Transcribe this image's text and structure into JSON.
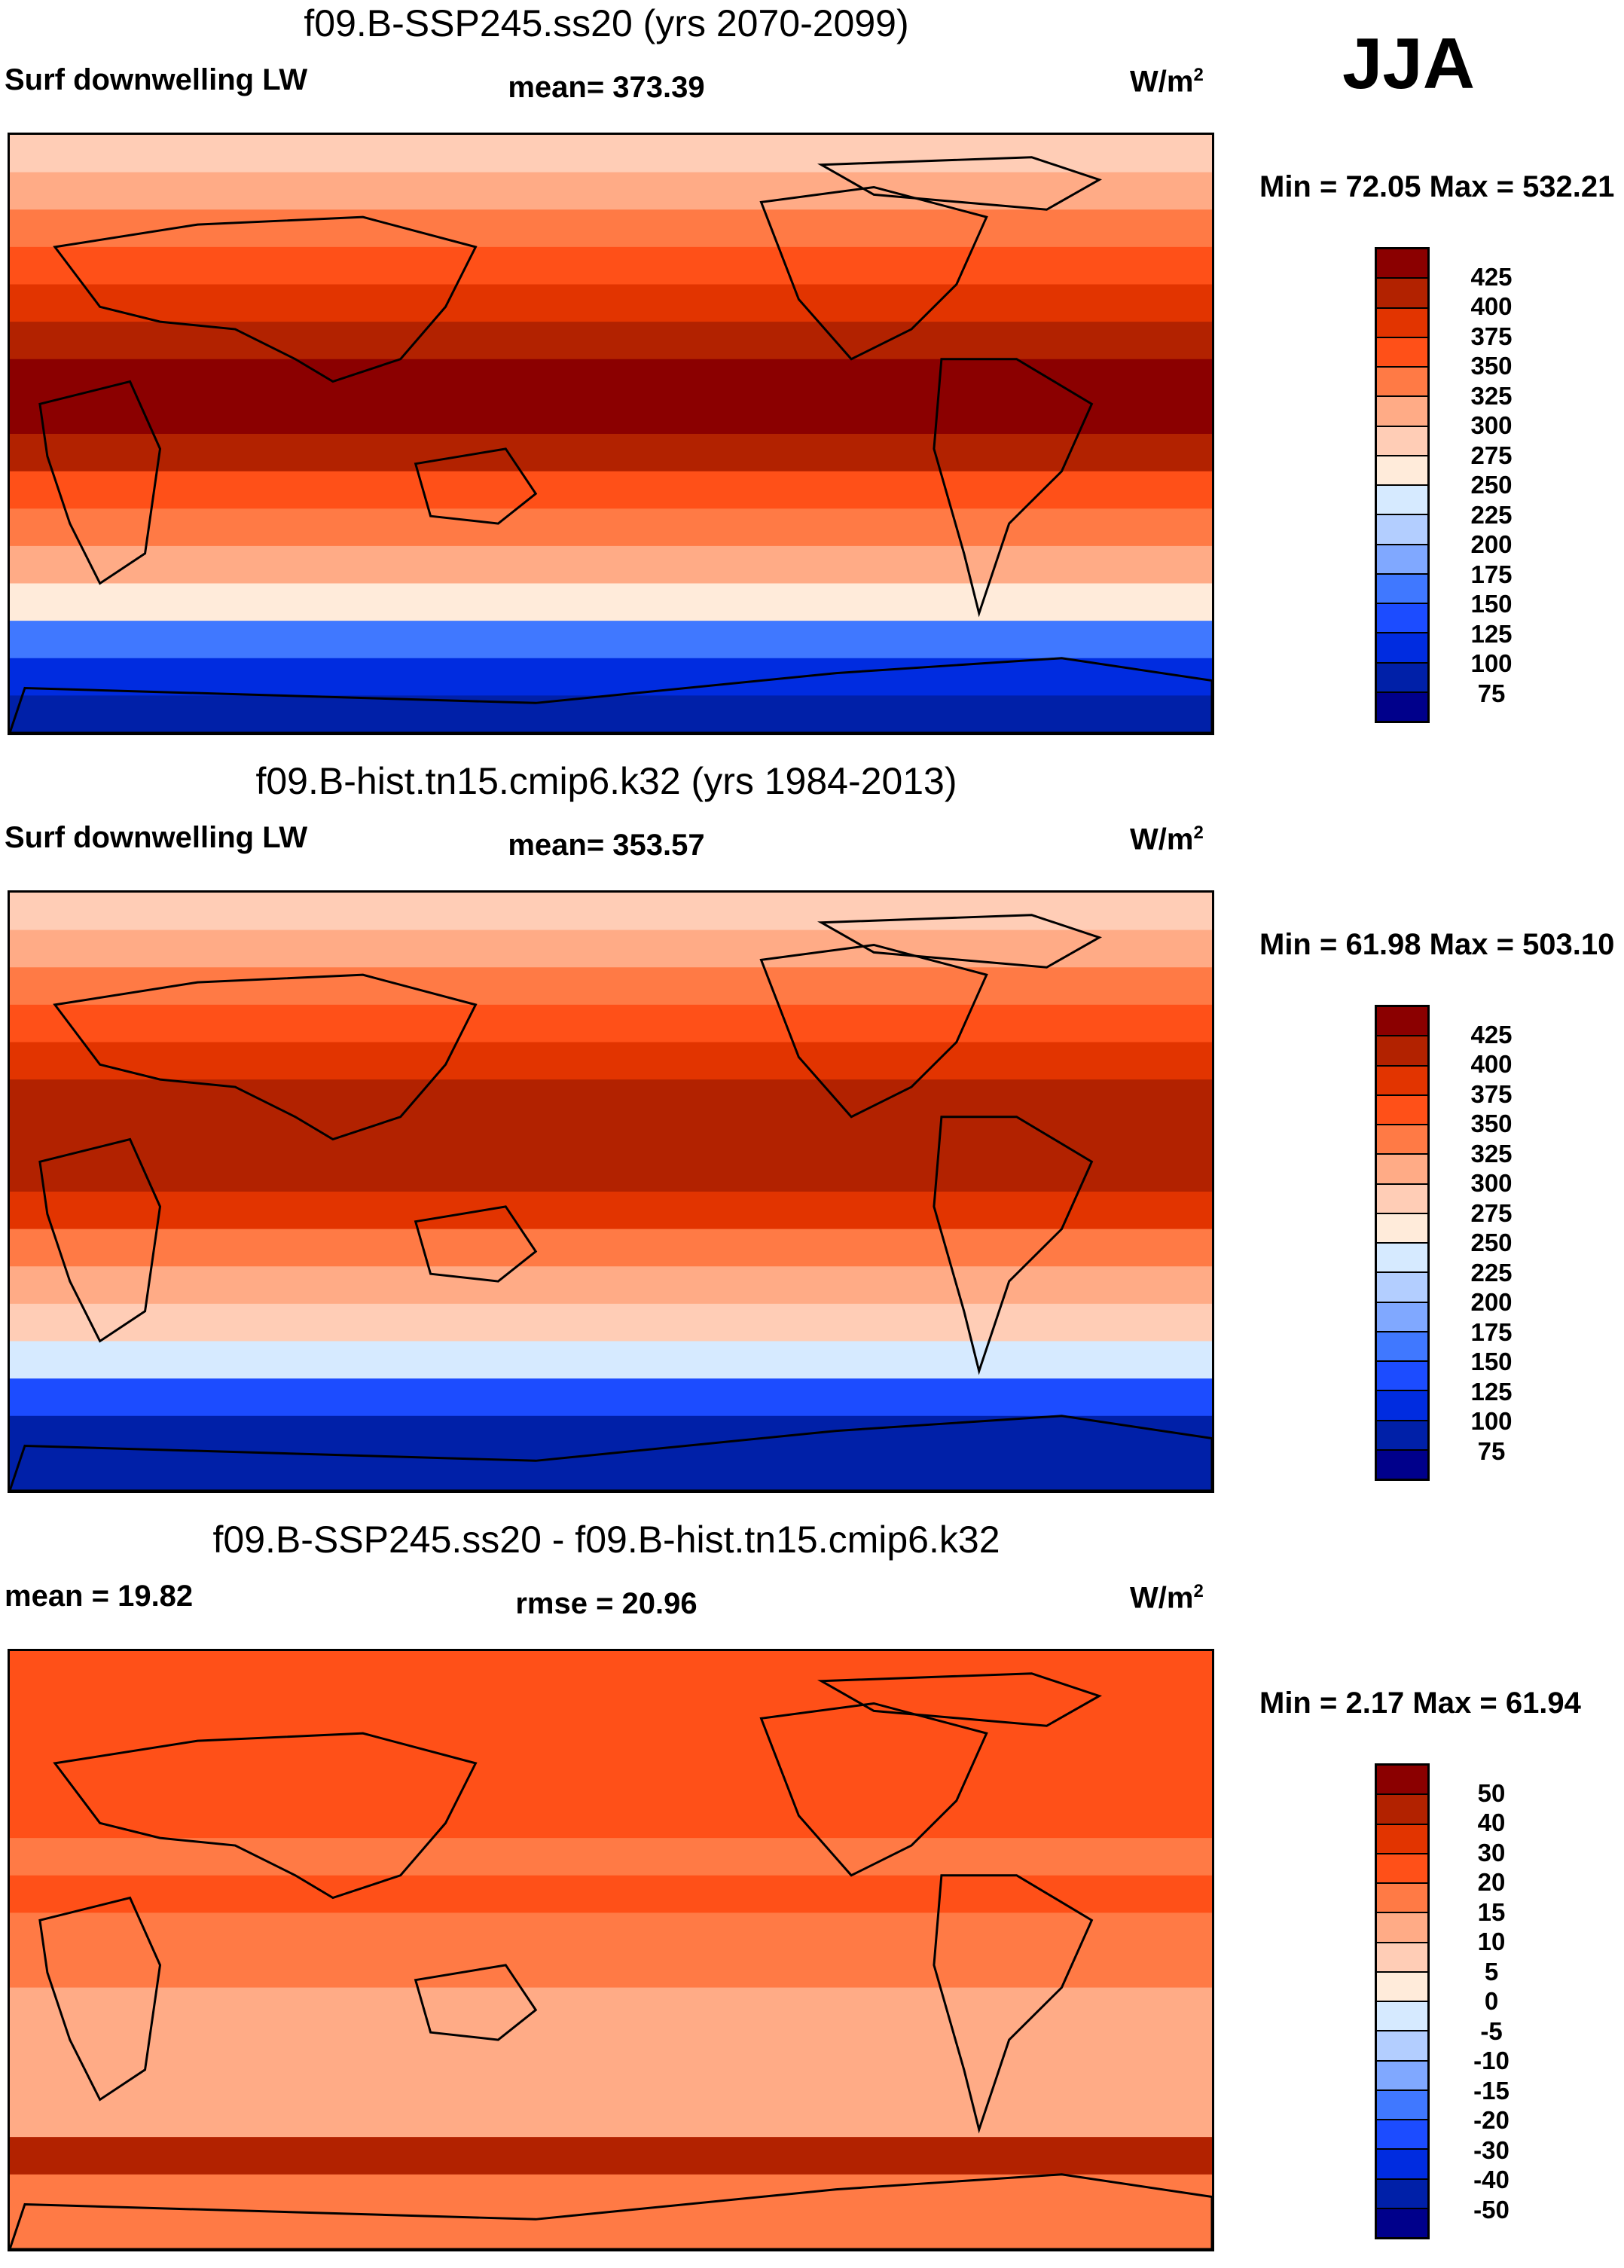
{
  "season": "JJA",
  "chart_data": [
    {
      "type": "heatmap",
      "title": "f09.B-SSP245.ss20 (yrs 2070-2099)",
      "left_label": "Surf downwelling LW",
      "center_label": "mean= 373.39",
      "units": "W/m",
      "units_sup": "2",
      "min_max": "Min =  72.05 Max = 532.21",
      "levels": [
        "425",
        "400",
        "375",
        "350",
        "325",
        "300",
        "275",
        "250",
        "225",
        "200",
        "175",
        "150",
        "125",
        "100",
        "75"
      ],
      "zonal_values_north_to_south": [
        290,
        320,
        345,
        370,
        395,
        420,
        430,
        425,
        400,
        370,
        340,
        300,
        260,
        160,
        110,
        95
      ]
    },
    {
      "type": "heatmap",
      "title": "f09.B-hist.tn15.cmip6.k32 (yrs 1984-2013)",
      "left_label": "Surf downwelling LW",
      "center_label": "mean= 353.57",
      "units": "W/m",
      "units_sup": "2",
      "min_max": "Min =  61.98 Max = 503.10",
      "levels": [
        "425",
        "400",
        "375",
        "350",
        "325",
        "300",
        "275",
        "250",
        "225",
        "200",
        "175",
        "150",
        "125",
        "100",
        "75"
      ],
      "zonal_values_north_to_south": [
        280,
        305,
        330,
        350,
        375,
        400,
        420,
        405,
        380,
        345,
        320,
        285,
        240,
        140,
        95,
        80
      ]
    },
    {
      "type": "heatmap",
      "title": "f09.B-SSP245.ss20 - f09.B-hist.tn15.cmip6.k32",
      "left_label": "mean =  19.82",
      "center_label": "rmse =  20.96",
      "units": "W/m",
      "units_sup": "2",
      "min_max": "Min =   2.17 Max =  61.94",
      "levels": [
        "50",
        "40",
        "30",
        "20",
        "15",
        "10",
        "5",
        "0",
        "-5",
        "-10",
        "-15",
        "-20",
        "-30",
        "-40",
        "-50"
      ],
      "zonal_values_north_to_south": [
        20,
        22,
        24,
        23,
        21,
        19,
        20,
        18,
        16,
        14,
        12,
        13,
        14,
        40,
        18,
        16
      ]
    }
  ],
  "colormap": [
    "#8b0000",
    "#b22200",
    "#e23400",
    "#ff5018",
    "#ff7a45",
    "#ffab86",
    "#ffcdb6",
    "#ffebda",
    "#d6eaff",
    "#b3ceff",
    "#80a8ff",
    "#4078ff",
    "#1c4cff",
    "#002ce0",
    "#0020a8",
    "#00008b"
  ]
}
